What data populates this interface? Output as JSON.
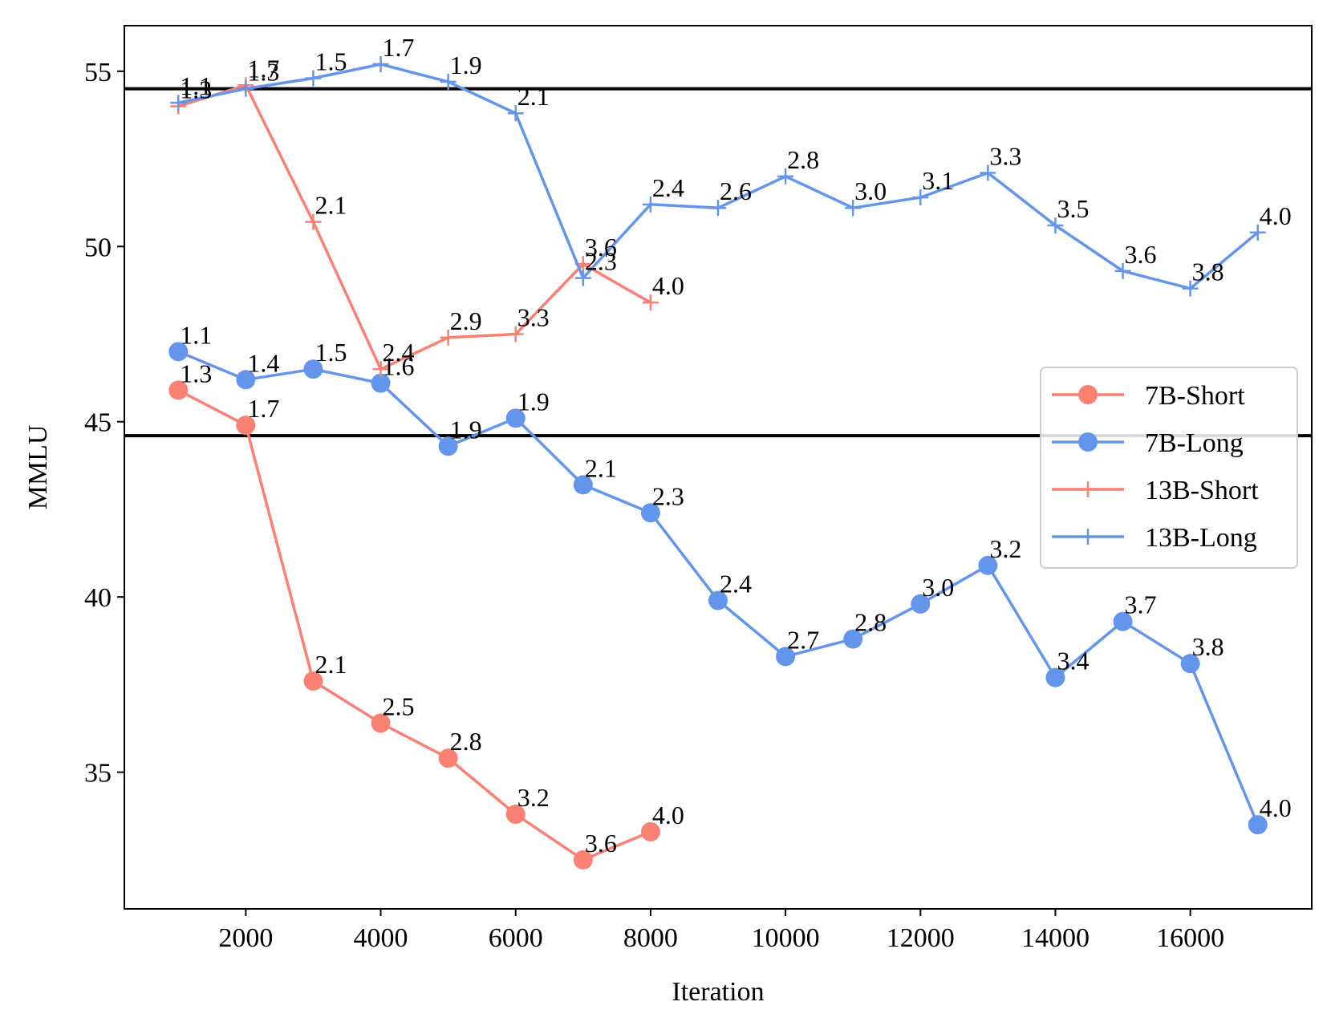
{
  "chart_data": {
    "type": "line",
    "title": "",
    "xlabel": "Iteration",
    "ylabel": "MMLU",
    "xlim": [
      200,
      17800
    ],
    "ylim": [
      31.1,
      56.3
    ],
    "xticks": [
      2000,
      4000,
      6000,
      8000,
      10000,
      12000,
      14000,
      16000
    ],
    "yticks": [
      35,
      40,
      45,
      50,
      55
    ],
    "grid": false,
    "legend_position": "center-right",
    "hlines": [
      {
        "y": 54.5,
        "color": "#000000"
      },
      {
        "y": 44.6,
        "color": "#000000"
      }
    ],
    "series": [
      {
        "name": "7B-Short",
        "marker": "circle",
        "color": "#fa8072",
        "x": [
          1000,
          2000,
          3000,
          4000,
          5000,
          6000,
          7000,
          8000
        ],
        "y": [
          45.9,
          44.9,
          37.6,
          36.4,
          35.4,
          33.8,
          32.5,
          33.3
        ],
        "labels": [
          "1.3",
          "1.7",
          "2.1",
          "2.5",
          "2.8",
          "3.2",
          "3.6",
          "4.0"
        ]
      },
      {
        "name": "7B-Long",
        "marker": "circle",
        "color": "#6495ed",
        "x": [
          1000,
          2000,
          3000,
          4000,
          5000,
          6000,
          7000,
          8000,
          9000,
          10000,
          11000,
          12000,
          13000,
          14000,
          15000,
          16000,
          17000
        ],
        "y": [
          47.0,
          46.2,
          46.5,
          46.1,
          44.3,
          45.1,
          43.2,
          42.4,
          39.9,
          38.3,
          38.8,
          39.8,
          40.9,
          37.7,
          39.3,
          38.1,
          33.5
        ],
        "labels": [
          "1.1",
          "1.4",
          "1.5",
          "1.6",
          "1.9",
          "1.9",
          "2.1",
          "2.3",
          "2.4",
          "2.7",
          "2.8",
          "3.0",
          "3.2",
          "3.4",
          "3.7",
          "3.8",
          "4.0"
        ]
      },
      {
        "name": "13B-Short",
        "marker": "plus",
        "color": "#fa8072",
        "x": [
          1000,
          2000,
          3000,
          4000,
          5000,
          6000,
          7000,
          8000
        ],
        "y": [
          54.0,
          54.6,
          50.7,
          46.5,
          47.4,
          47.5,
          49.5,
          48.4
        ],
        "labels": [
          "1.3",
          "1.7",
          "2.1",
          "2.4",
          "2.9",
          "3.3",
          "3.6",
          "4.0"
        ]
      },
      {
        "name": "13B-Long",
        "marker": "plus",
        "color": "#6495ed",
        "x": [
          1000,
          2000,
          3000,
          4000,
          5000,
          6000,
          7000,
          8000,
          9000,
          10000,
          11000,
          12000,
          13000,
          14000,
          15000,
          16000,
          17000
        ],
        "y": [
          54.1,
          54.5,
          54.8,
          55.2,
          54.7,
          53.8,
          49.1,
          51.2,
          51.1,
          52.0,
          51.1,
          51.4,
          52.1,
          50.6,
          49.3,
          48.8,
          50.4
        ],
        "labels": [
          "1.1",
          "1.3",
          "1.5",
          "1.7",
          "1.9",
          "2.1",
          "2.3",
          "2.4",
          "2.6",
          "2.8",
          "3.0",
          "3.1",
          "3.3",
          "3.5",
          "3.6",
          "3.8",
          "4.0"
        ]
      }
    ]
  }
}
